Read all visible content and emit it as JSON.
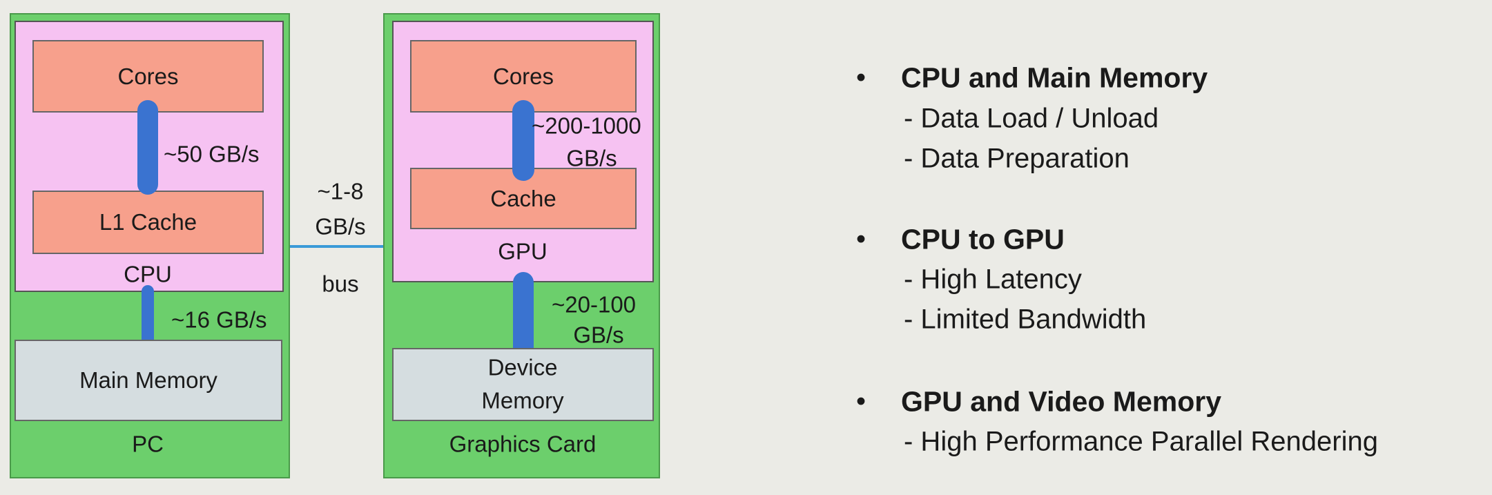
{
  "diagram": {
    "pc": {
      "label": "PC",
      "cpu_label": "CPU",
      "cores": "Cores",
      "l1_cache": "L1 Cache",
      "main_memory": "Main Memory",
      "cores_to_cache_bw": "~50 GB/s",
      "cpu_to_memory_bw": "~16 GB/s"
    },
    "bus": {
      "bw_line1": "~1-8",
      "bw_line2": "GB/s",
      "label": "bus"
    },
    "graphics_card": {
      "label": "Graphics Card",
      "gpu_label": "GPU",
      "cores": "Cores",
      "cache": "Cache",
      "device_memory_line1": "Device",
      "device_memory_line2": "Memory",
      "cores_to_cache_bw_line1": "~200-1000",
      "cores_to_cache_bw_line2": "GB/s",
      "gpu_to_memory_bw_line1": "~20-100",
      "gpu_to_memory_bw_line2": "GB/s"
    },
    "colors": {
      "board": "#6ccf6c",
      "chip": "#f6c2f2",
      "unit": "#f7a08c",
      "memory": "#d5dde0",
      "link": "#3a73d0"
    }
  },
  "bullets": [
    {
      "heading": "CPU and Main Memory",
      "items": [
        "- Data Load / Unload",
        "- Data Preparation"
      ]
    },
    {
      "heading": "CPU to GPU",
      "items": [
        "- High Latency",
        "- Limited Bandwidth"
      ]
    },
    {
      "heading": "GPU and Video Memory",
      "items": [
        "- High Performance Parallel Rendering"
      ]
    }
  ]
}
